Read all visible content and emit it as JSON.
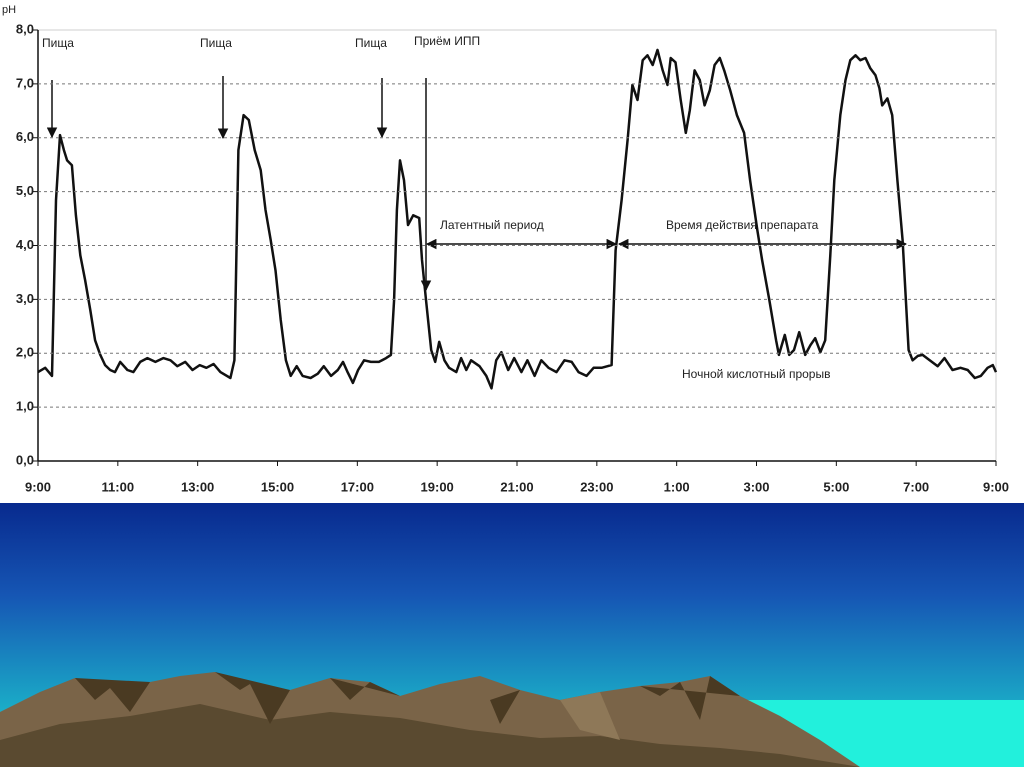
{
  "chart_data": {
    "type": "line",
    "ylabel": "pH",
    "color": "#111111",
    "grid": true,
    "xlim": [
      9,
      33
    ],
    "ylim": [
      0,
      8
    ],
    "xticks": [
      {
        "value": 9,
        "label": "9:00"
      },
      {
        "value": 11,
        "label": "11:00"
      },
      {
        "value": 13,
        "label": "13:00"
      },
      {
        "value": 15,
        "label": "15:00"
      },
      {
        "value": 17,
        "label": "17:00"
      },
      {
        "value": 19,
        "label": "19:00"
      },
      {
        "value": 21,
        "label": "21:00"
      },
      {
        "value": 23,
        "label": "23:00"
      },
      {
        "value": 25,
        "label": "1:00"
      },
      {
        "value": 27,
        "label": "3:00"
      },
      {
        "value": 29,
        "label": "5:00"
      },
      {
        "value": 31,
        "label": "7:00"
      },
      {
        "value": 33,
        "label": "9:00"
      }
    ],
    "yticks": [
      {
        "value": 0,
        "label": "0,0"
      },
      {
        "value": 1,
        "label": "1,0"
      },
      {
        "value": 2,
        "label": "2,0"
      },
      {
        "value": 3,
        "label": "3,0"
      },
      {
        "value": 4,
        "label": "4,0"
      },
      {
        "value": 5,
        "label": "5,0"
      },
      {
        "value": 6,
        "label": "6,0"
      },
      {
        "value": 7,
        "label": "7,0"
      },
      {
        "value": 8,
        "label": "8,0"
      }
    ],
    "annotations": [
      "Пища",
      "Пища",
      "Пища",
      "Приём ИПП",
      "Латентный период",
      "Время действия препарата",
      "Ночной кислотный прорыв"
    ],
    "x": [
      9.0,
      9.18,
      9.35,
      9.45,
      9.55,
      9.65,
      9.73,
      9.85,
      9.95,
      10.06,
      10.18,
      10.31,
      10.43,
      10.56,
      10.68,
      10.81,
      10.93,
      11.06,
      11.24,
      11.39,
      11.56,
      11.74,
      11.94,
      12.14,
      12.32,
      12.49,
      12.69,
      12.87,
      13.05,
      13.22,
      13.4,
      13.57,
      13.82,
      13.92,
      14.02,
      14.15,
      14.28,
      14.43,
      14.58,
      14.7,
      14.83,
      14.95,
      15.08,
      15.21,
      15.33,
      15.48,
      15.63,
      15.83,
      16.01,
      16.16,
      16.34,
      16.51,
      16.64,
      16.76,
      16.89,
      17.02,
      17.17,
      17.34,
      17.54,
      17.72,
      17.84,
      17.92,
      17.99,
      18.07,
      18.17,
      18.27,
      18.4,
      18.55,
      18.62,
      18.72,
      18.85,
      18.95,
      19.05,
      19.18,
      19.3,
      19.48,
      19.6,
      19.73,
      19.85,
      20.06,
      20.23,
      20.36,
      20.48,
      20.61,
      20.78,
      20.93,
      21.11,
      21.26,
      21.44,
      21.61,
      21.79,
      21.99,
      22.19,
      22.37,
      22.54,
      22.74,
      22.92,
      23.12,
      23.37,
      23.47,
      23.62,
      23.77,
      23.89,
      24.02,
      24.15,
      24.27,
      24.4,
      24.52,
      24.65,
      24.77,
      24.85,
      24.97,
      25.1,
      25.23,
      25.33,
      25.45,
      25.58,
      25.7,
      25.83,
      25.95,
      26.08,
      26.19,
      26.34,
      26.51,
      26.69,
      26.84,
      27.02,
      27.14,
      27.32,
      27.49,
      27.56,
      27.71,
      27.82,
      27.94,
      28.07,
      28.22,
      28.35,
      28.47,
      28.6,
      28.72,
      28.85,
      28.95,
      29.1,
      29.23,
      29.35,
      29.48,
      29.6,
      29.73,
      29.85,
      29.98,
      30.08,
      30.15,
      30.28,
      30.4,
      30.53,
      30.66,
      30.81,
      30.91,
      31.04,
      31.16,
      31.34,
      31.54,
      31.71,
      31.91,
      32.11,
      32.29,
      32.47,
      32.62,
      32.79,
      32.92,
      33.0
    ],
    "values": [
      1.65,
      1.73,
      1.58,
      4.84,
      6.05,
      5.77,
      5.58,
      5.49,
      4.56,
      3.82,
      3.36,
      2.8,
      2.24,
      1.97,
      1.78,
      1.69,
      1.65,
      1.84,
      1.69,
      1.65,
      1.84,
      1.91,
      1.84,
      1.91,
      1.87,
      1.76,
      1.84,
      1.69,
      1.78,
      1.73,
      1.8,
      1.65,
      1.54,
      1.87,
      5.77,
      6.42,
      6.33,
      5.77,
      5.4,
      4.66,
      4.1,
      3.54,
      2.62,
      1.87,
      1.58,
      1.76,
      1.58,
      1.54,
      1.62,
      1.76,
      1.58,
      1.69,
      1.84,
      1.64,
      1.45,
      1.69,
      1.87,
      1.84,
      1.84,
      1.91,
      1.97,
      2.99,
      4.66,
      5.58,
      5.21,
      4.38,
      4.56,
      4.51,
      3.73,
      2.99,
      2.06,
      1.84,
      2.21,
      1.87,
      1.73,
      1.65,
      1.91,
      1.69,
      1.87,
      1.76,
      1.58,
      1.35,
      1.87,
      2.02,
      1.69,
      1.91,
      1.65,
      1.87,
      1.58,
      1.87,
      1.73,
      1.65,
      1.87,
      1.84,
      1.65,
      1.58,
      1.73,
      1.73,
      1.78,
      3.91,
      4.84,
      5.96,
      6.98,
      6.7,
      7.44,
      7.53,
      7.35,
      7.63,
      7.25,
      6.98,
      7.48,
      7.4,
      6.7,
      6.09,
      6.51,
      7.25,
      7.07,
      6.6,
      6.88,
      7.35,
      7.48,
      7.25,
      6.88,
      6.42,
      6.09,
      5.21,
      4.29,
      3.73,
      2.99,
      2.24,
      1.97,
      2.34,
      1.97,
      2.06,
      2.39,
      1.97,
      2.15,
      2.28,
      2.02,
      2.24,
      3.82,
      5.21,
      6.42,
      7.07,
      7.44,
      7.53,
      7.44,
      7.48,
      7.29,
      7.16,
      6.92,
      6.6,
      6.73,
      6.42,
      5.21,
      4.1,
      2.06,
      1.87,
      1.95,
      1.97,
      1.87,
      1.76,
      1.91,
      1.69,
      1.73,
      1.69,
      1.54,
      1.58,
      1.73,
      1.78,
      1.65
    ]
  }
}
